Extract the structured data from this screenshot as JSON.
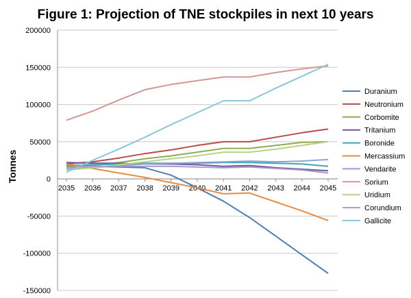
{
  "chart_data": {
    "type": "line",
    "title": "Figure 1: Projection of TNE stockpiles in next 10 years",
    "ylabel": "Tonnes",
    "xlabel": "",
    "categories": [
      "2035",
      "2036",
      "2037",
      "2038",
      "2039",
      "2040",
      "2041",
      "2042",
      "2043",
      "2044",
      "2045"
    ],
    "ylim": [
      -150000,
      200000
    ],
    "yticks": [
      -150000,
      -100000,
      -50000,
      0,
      50000,
      100000,
      150000,
      200000
    ],
    "ytick_labels": [
      "-150000",
      "-100000",
      "-50000",
      "0",
      "50000",
      "100000",
      "150000",
      "200000"
    ],
    "grid": true,
    "legend": "right",
    "series": [
      {
        "name": "Duranium",
        "color": "#4f7db8",
        "values": [
          18000,
          17000,
          16000,
          15000,
          5000,
          -12000,
          -30000,
          -52000,
          -77000,
          -102000,
          -127000
        ]
      },
      {
        "name": "Neutronium",
        "color": "#b84b48",
        "values": [
          20000,
          23000,
          28000,
          34000,
          39000,
          45000,
          50000,
          50000,
          56000,
          62000,
          67000
        ]
      },
      {
        "name": "Corbomite",
        "color": "#8ead4e",
        "values": [
          16000,
          18000,
          22000,
          27000,
          31000,
          36000,
          41000,
          41000,
          45000,
          49000,
          50000
        ]
      },
      {
        "name": "Tritanium",
        "color": "#7054a2",
        "values": [
          22000,
          21000,
          21000,
          20000,
          20000,
          19000,
          17000,
          18000,
          15000,
          13000,
          11000
        ]
      },
      {
        "name": "Boronide",
        "color": "#3fa6b8",
        "values": [
          18000,
          19000,
          20000,
          21000,
          21000,
          21000,
          22000,
          22000,
          21000,
          20000,
          17000
        ]
      },
      {
        "name": "Mercassium",
        "color": "#ec8a3a",
        "values": [
          20000,
          14000,
          8000,
          2000,
          -5000,
          -12000,
          -20000,
          -19000,
          -31000,
          -43000,
          -56000
        ]
      },
      {
        "name": "Vendarite",
        "color": "#8ca4d0",
        "values": [
          13000,
          15000,
          18000,
          20000,
          21000,
          22000,
          23000,
          24000,
          23000,
          24000,
          26000
        ]
      },
      {
        "name": "Sorium",
        "color": "#d49594",
        "values": [
          79000,
          91000,
          106000,
          120000,
          127000,
          132000,
          137000,
          137000,
          143000,
          148000,
          152000
        ]
      },
      {
        "name": "Uridium",
        "color": "#b8d28c",
        "values": [
          12000,
          15000,
          19000,
          23000,
          27000,
          31000,
          36000,
          36000,
          40000,
          45000,
          50000
        ]
      },
      {
        "name": "Corundium",
        "color": "#a799c2",
        "values": [
          15000,
          17000,
          17000,
          17000,
          17000,
          16000,
          15000,
          16000,
          14000,
          12000,
          8000
        ]
      },
      {
        "name": "Gallicite",
        "color": "#88c6d8",
        "values": [
          9000,
          25000,
          40000,
          56000,
          73000,
          89000,
          105000,
          105000,
          122000,
          138000,
          154000
        ]
      }
    ]
  }
}
